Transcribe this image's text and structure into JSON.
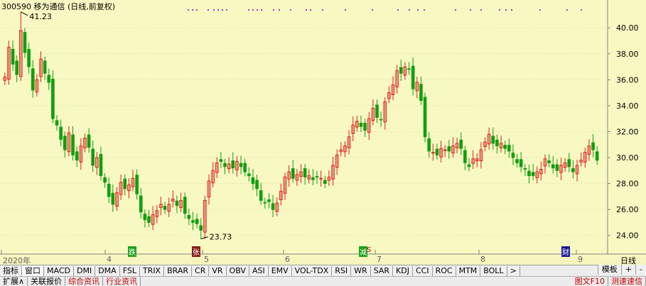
{
  "title": "300590 移为通信 (日线,前复权)",
  "period": "日线",
  "high_label": "41.23",
  "low_label": "23.73",
  "x_labels": [
    "2020年",
    "4",
    "5",
    "6",
    "7",
    "8",
    "9"
  ],
  "event_markers": [
    {
      "label": "跌",
      "color": "#1aa31a"
    },
    {
      "label": "张",
      "color": "#8b1a1a"
    },
    {
      "label": "减",
      "color": "#1aa31a"
    },
    {
      "label": "S",
      "color": "#cc0000"
    },
    {
      "label": "财",
      "color": "#1a1a9a"
    }
  ],
  "indicator_tabs": [
    "指标",
    "窗口",
    "MACD",
    "DMI",
    "DMA",
    "FSL",
    "TRIX",
    "BRAR",
    "CR",
    "VR",
    "OBV",
    "ASI",
    "EMV",
    "VOL-TDX",
    "RSI",
    "WR",
    "SAR",
    "KDJ",
    "CCI",
    "ROC",
    "MTM",
    "BOLL",
    ">"
  ],
  "right_tools": [
    "模板",
    "+",
    "-"
  ],
  "status_tabs": [
    "扩展∧",
    "关联报价",
    "综合资讯",
    "行业资讯"
  ],
  "status_right": [
    "图文F10",
    "测速速信"
  ],
  "colors": {
    "up": "#e02020",
    "down": "#10a010",
    "background": "#f8f8c2",
    "grid": "#d8d8a8"
  },
  "chart_data": {
    "type": "candlestick",
    "title": "300590 移为通信 (日线,前复权)",
    "y_ticks": [
      24.0,
      26.0,
      28.0,
      30.0,
      32.0,
      34.0,
      36.0,
      38.0,
      40.0
    ],
    "ylim": [
      23.0,
      41.6
    ],
    "closes": [
      36.2,
      38.5,
      37.2,
      36.4,
      39.8,
      38.1,
      37.0,
      35.2,
      36.0,
      37.6,
      36.5,
      35.8,
      33.0,
      32.5,
      31.4,
      30.6,
      31.9,
      30.2,
      29.8,
      30.9,
      31.5,
      30.8,
      29.4,
      30.0,
      28.6,
      28.1,
      27.0,
      26.4,
      27.3,
      28.1,
      27.6,
      27.9,
      28.4,
      27.2,
      25.8,
      25.2,
      25.0,
      25.6,
      25.9,
      26.4,
      26.0,
      26.4,
      26.8,
      26.3,
      26.7,
      25.7,
      25.3,
      25.0,
      24.9,
      24.4,
      26.7,
      28.2,
      29.0,
      29.6,
      29.7,
      29.3,
      29.5,
      29.2,
      29.7,
      29.3,
      28.9,
      28.6,
      28.0,
      27.6,
      26.7,
      26.5,
      26.6,
      26.0,
      26.5,
      27.4,
      28.5,
      28.9,
      28.4,
      28.7,
      28.9,
      28.5,
      28.6,
      28.3,
      28.5,
      28.4,
      28.0,
      28.5,
      29.4,
      30.2,
      30.6,
      30.9,
      31.6,
      32.5,
      32.8,
      32.4,
      32.1,
      33.0,
      33.8,
      33.1,
      32.9,
      34.3,
      35.0,
      35.6,
      36.7,
      36.5,
      37.0,
      36.8,
      35.3,
      35.8,
      34.4,
      31.6,
      30.5,
      30.4,
      30.2,
      30.7,
      30.6,
      30.5,
      30.9,
      31.1,
      30.7,
      29.6,
      29.3,
      29.9,
      29.9,
      30.6,
      31.2,
      31.8,
      31.1,
      30.9,
      31.1,
      30.7,
      30.5,
      30.0,
      29.6,
      29.3,
      29.1,
      28.6,
      28.6,
      28.9,
      29.1,
      29.9,
      29.6,
      29.2,
      29.0,
      29.4,
      29.6,
      29.3,
      28.9,
      29.4,
      29.8,
      30.4,
      30.9,
      30.6,
      29.8
    ]
  }
}
